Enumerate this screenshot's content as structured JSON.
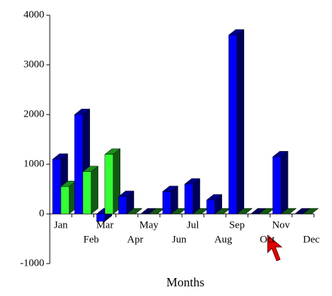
{
  "chart_data": {
    "type": "bar3d",
    "x_label": "Months",
    "categories": [
      "Jan",
      "Feb",
      "Mar",
      "Apr",
      "May",
      "Jun",
      "Jul",
      "Aug",
      "Sep",
      "Oct",
      "Nov",
      "Dec"
    ],
    "series": [
      {
        "color": "#0000ff",
        "values": [
          1100,
          2000,
          -150,
          350,
          0,
          450,
          600,
          280,
          3600,
          0,
          1150,
          0
        ]
      },
      {
        "color": "#33ff33",
        "values": [
          550,
          850,
          1200,
          0,
          0,
          0,
          0,
          0,
          0,
          0,
          0,
          0
        ]
      }
    ],
    "ylim": [
      -1000,
      4000
    ],
    "yticks": [
      -1000,
      0,
      1000,
      2000,
      3000,
      4000
    ]
  }
}
